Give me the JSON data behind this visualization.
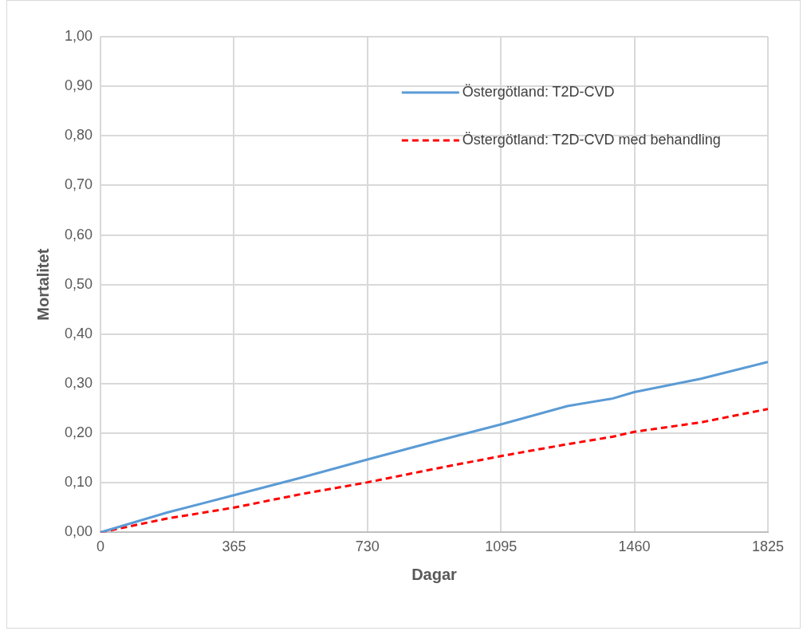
{
  "chart_data": {
    "type": "line",
    "xlabel": "Dagar",
    "ylabel": "Mortalitet",
    "xlim": [
      0,
      1825
    ],
    "xticks": [
      0,
      365,
      730,
      1095,
      1460,
      1825
    ],
    "ylim": [
      0,
      1
    ],
    "yticks": [
      {
        "value": 0,
        "label": "0,00"
      },
      {
        "value": 0.1,
        "label": "0,10"
      },
      {
        "value": 0.2,
        "label": "0,20"
      },
      {
        "value": 0.3,
        "label": "0,30"
      },
      {
        "value": 0.4,
        "label": "0,40"
      },
      {
        "value": 0.5,
        "label": "0,50"
      },
      {
        "value": 0.6,
        "label": "0,60"
      },
      {
        "value": 0.7,
        "label": "0,70"
      },
      {
        "value": 0.8,
        "label": "0,80"
      },
      {
        "value": 0.9,
        "label": "0,90"
      },
      {
        "value": 1,
        "label": "1,00"
      }
    ],
    "grid": true,
    "legend": "top right",
    "marker": "none",
    "series": [
      {
        "name": "Östergötland: T2D-CVD",
        "color": "#5b9bd5",
        "line_style": "solid",
        "x": [
          0,
          182,
          365,
          547,
          730,
          912,
          1095,
          1277,
          1400,
          1460,
          1642,
          1825
        ],
        "values": [
          0,
          0.04,
          0.075,
          0.11,
          0.147,
          0.183,
          0.218,
          0.255,
          0.27,
          0.283,
          0.31,
          0.344
        ]
      },
      {
        "name": "Östergötland: T2D-CVD med behandling",
        "color": "#ff0000",
        "line_style": "dashed",
        "x": [
          0,
          182,
          365,
          547,
          730,
          912,
          1095,
          1277,
          1400,
          1460,
          1642,
          1825
        ],
        "values": [
          0,
          0.028,
          0.05,
          0.077,
          0.101,
          0.128,
          0.154,
          0.178,
          0.193,
          0.203,
          0.222,
          0.249
        ]
      }
    ]
  }
}
